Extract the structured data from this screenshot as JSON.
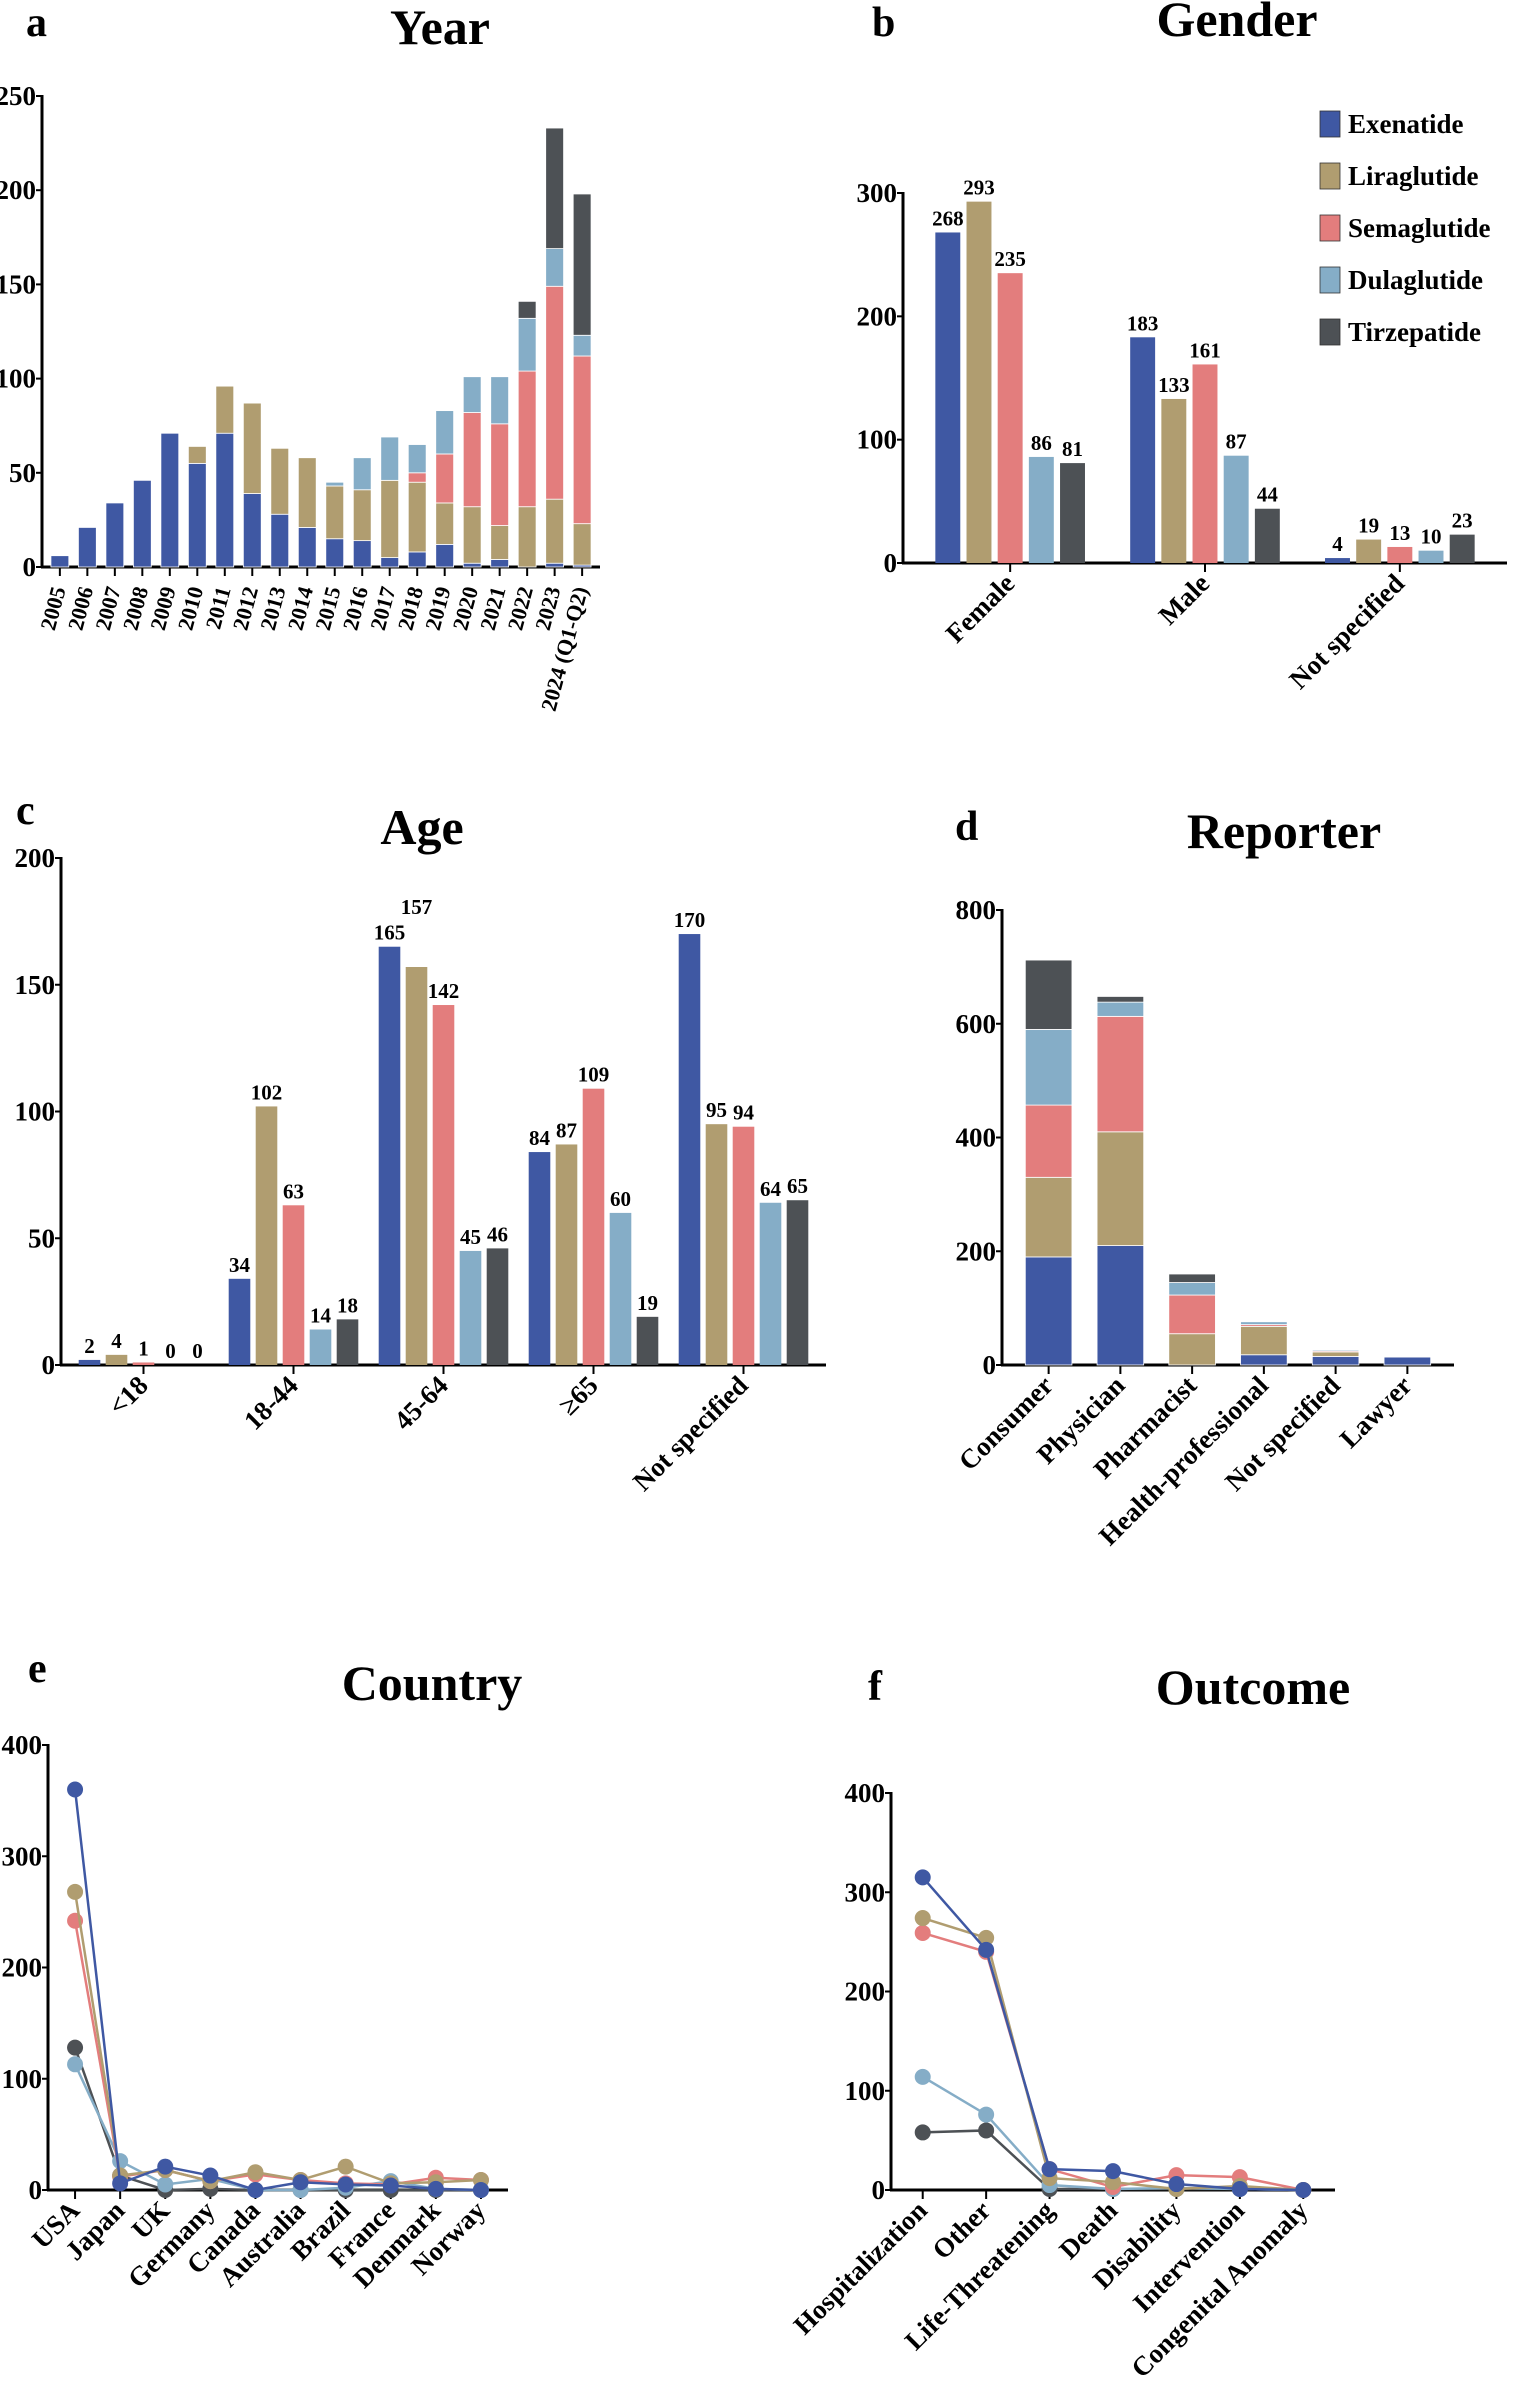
{
  "colors": {
    "Exenatide": "#3F58A3",
    "Liraglutide": "#B09D70",
    "Semaglutide": "#E37D7D",
    "Dulaglutide": "#85ADC7",
    "Tirzepatide": "#4D5155"
  },
  "legend": [
    "Exenatide",
    "Liraglutide",
    "Semaglutide",
    "Dulaglutide",
    "Tirzepatide"
  ],
  "chart_data": [
    {
      "panel": "a",
      "type": "bar",
      "stacked": true,
      "title": "Year",
      "ylim": [
        0,
        250
      ],
      "yticks": [
        0,
        50,
        100,
        150,
        200,
        250
      ],
      "categories": [
        "2005",
        "2006",
        "2007",
        "2008",
        "2009",
        "2010",
        "2011",
        "2012",
        "2013",
        "2014",
        "2015",
        "2016",
        "2017",
        "2018",
        "2019",
        "2020",
        "2021",
        "2022",
        "2023",
        "2024 (Q1-Q2)"
      ],
      "series": [
        {
          "name": "Exenatide",
          "values": [
            6,
            21,
            34,
            46,
            71,
            55,
            71,
            39,
            28,
            21,
            15,
            14,
            5,
            8,
            12,
            2,
            4,
            0,
            2,
            1
          ]
        },
        {
          "name": "Liraglutide",
          "values": [
            0,
            0,
            0,
            0,
            0,
            9,
            25,
            48,
            35,
            37,
            28,
            27,
            41,
            37,
            22,
            30,
            18,
            32,
            34,
            22
          ]
        },
        {
          "name": "Semaglutide",
          "values": [
            0,
            0,
            0,
            0,
            0,
            0,
            0,
            0,
            0,
            0,
            0,
            0,
            0,
            5,
            26,
            50,
            54,
            72,
            113,
            89
          ]
        },
        {
          "name": "Dulaglutide",
          "values": [
            0,
            0,
            0,
            0,
            0,
            0,
            0,
            0,
            0,
            0,
            2,
            17,
            23,
            15,
            23,
            19,
            25,
            28,
            20,
            11
          ]
        },
        {
          "name": "Tirzepatide",
          "values": [
            0,
            0,
            0,
            0,
            0,
            0,
            0,
            0,
            0,
            0,
            0,
            0,
            0,
            0,
            0,
            0,
            0,
            9,
            64,
            75
          ]
        }
      ]
    },
    {
      "panel": "b",
      "type": "bar",
      "stacked": false,
      "title": "Gender",
      "ylim": [
        0,
        300
      ],
      "yticks": [
        0,
        100,
        200,
        300
      ],
      "legend_position": "top-right",
      "categories": [
        "Female",
        "Male",
        "Not specified"
      ],
      "series": [
        {
          "name": "Exenatide",
          "values": [
            268,
            183,
            4
          ]
        },
        {
          "name": "Liraglutide",
          "values": [
            293,
            133,
            19
          ]
        },
        {
          "name": "Semaglutide",
          "values": [
            235,
            161,
            13
          ]
        },
        {
          "name": "Dulaglutide",
          "values": [
            86,
            87,
            10
          ]
        },
        {
          "name": "Tirzepatide",
          "values": [
            81,
            44,
            23
          ]
        }
      ]
    },
    {
      "panel": "c",
      "type": "bar",
      "stacked": false,
      "title": "Age",
      "ylim": [
        0,
        200
      ],
      "yticks": [
        0,
        50,
        100,
        150,
        200
      ],
      "categories": [
        "<18",
        "18-44",
        "45-64",
        "≥65",
        "Not specified"
      ],
      "series": [
        {
          "name": "Exenatide",
          "values": [
            2,
            34,
            165,
            84,
            170
          ]
        },
        {
          "name": "Liraglutide",
          "values": [
            4,
            102,
            157,
            87,
            95
          ]
        },
        {
          "name": "Semaglutide",
          "values": [
            1,
            63,
            142,
            109,
            94
          ]
        },
        {
          "name": "Dulaglutide",
          "values": [
            0,
            14,
            45,
            60,
            64
          ]
        },
        {
          "name": "Tirzepatide",
          "values": [
            0,
            18,
            46,
            19,
            65
          ]
        }
      ]
    },
    {
      "panel": "d",
      "type": "bar",
      "stacked": true,
      "title": "Reporter",
      "ylim": [
        0,
        800
      ],
      "yticks": [
        0,
        200,
        400,
        600,
        800
      ],
      "categories": [
        "Consumer",
        "Physician",
        "Pharmacist",
        "Health-professional",
        "Not specified",
        "Lawyer"
      ],
      "series": [
        {
          "name": "Exenatide",
          "values": [
            190,
            210,
            0,
            18,
            15,
            14
          ]
        },
        {
          "name": "Liraglutide",
          "values": [
            140,
            200,
            55,
            50,
            8,
            1
          ]
        },
        {
          "name": "Semaglutide",
          "values": [
            127,
            203,
            68,
            3,
            2,
            0
          ]
        },
        {
          "name": "Dulaglutide",
          "values": [
            133,
            25,
            22,
            5,
            2,
            0
          ]
        },
        {
          "name": "Tirzepatide",
          "values": [
            122,
            10,
            15,
            0,
            0,
            0
          ]
        }
      ]
    },
    {
      "panel": "e",
      "type": "line",
      "title": "Country",
      "ylim": [
        0,
        400
      ],
      "yticks": [
        0,
        100,
        200,
        300,
        400
      ],
      "categories": [
        "USA",
        "Japan",
        "UK",
        "Germany",
        "Canada",
        "Australia",
        "Brazil",
        "France",
        "Denmark",
        "Norway"
      ],
      "series": [
        {
          "name": "Tirzepatide",
          "values": [
            128,
            13,
            0,
            1,
            0,
            0,
            0,
            0,
            0,
            0
          ]
        },
        {
          "name": "Dulaglutide",
          "values": [
            113,
            26,
            5,
            10,
            0,
            0,
            2,
            8,
            1,
            0
          ]
        },
        {
          "name": "Semaglutide",
          "values": [
            242,
            12,
            18,
            8,
            14,
            9,
            6,
            5,
            11,
            9
          ]
        },
        {
          "name": "Liraglutide",
          "values": [
            268,
            13,
            18,
            8,
            16,
            9,
            21,
            6,
            7,
            9
          ]
        },
        {
          "name": "Exenatide",
          "values": [
            360,
            6,
            21,
            13,
            0,
            7,
            5,
            4,
            1,
            0
          ]
        }
      ]
    },
    {
      "panel": "f",
      "type": "line",
      "title": "Outcome",
      "ylim": [
        0,
        400
      ],
      "yticks": [
        0,
        100,
        200,
        300,
        400
      ],
      "categories": [
        "Hospitalization",
        "Other",
        "Life-Threatening",
        "Death",
        "Disability",
        "Intervention",
        "Congenital Anomaly"
      ],
      "series": [
        {
          "name": "Tirzepatide",
          "values": [
            58,
            60,
            1,
            1,
            1,
            1,
            0
          ]
        },
        {
          "name": "Dulaglutide",
          "values": [
            114,
            76,
            5,
            1,
            2,
            1,
            0
          ]
        },
        {
          "name": "Semaglutide",
          "values": [
            259,
            240,
            21,
            3,
            15,
            13,
            0
          ]
        },
        {
          "name": "Liraglutide",
          "values": [
            274,
            254,
            12,
            8,
            1,
            4,
            0
          ]
        },
        {
          "name": "Exenatide",
          "values": [
            315,
            242,
            21,
            19,
            6,
            1,
            0
          ]
        }
      ]
    }
  ]
}
